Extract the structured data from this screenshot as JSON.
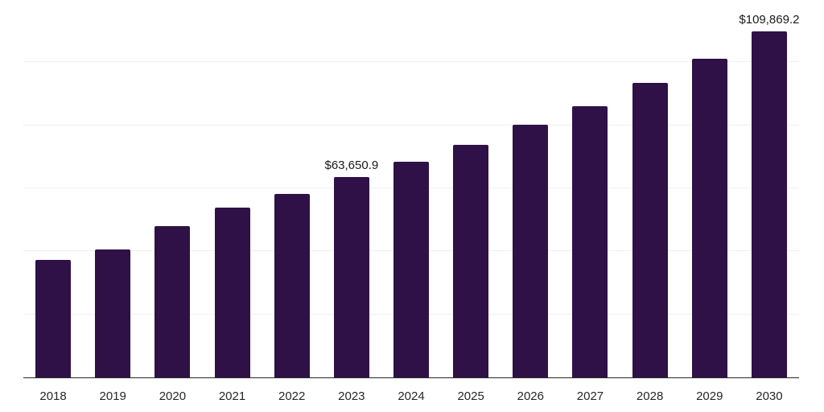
{
  "chart_data": {
    "type": "bar",
    "title": "",
    "xlabel": "",
    "ylabel": "",
    "categories": [
      "2018",
      "2019",
      "2020",
      "2021",
      "2022",
      "2023",
      "2024",
      "2025",
      "2026",
      "2027",
      "2028",
      "2029",
      "2030"
    ],
    "values": [
      37400,
      40700,
      48000,
      53900,
      58200,
      63650.9,
      68400,
      73700,
      80100,
      86100,
      93500,
      101200,
      109869.2
    ],
    "data_labels": [
      {
        "index": 5,
        "text": "$63,650.9"
      },
      {
        "index": 12,
        "text": "$109,869.2"
      }
    ],
    "ylim": [
      0,
      120000
    ],
    "gridline_step": 20000,
    "grid": "horizontal",
    "legend": "none",
    "colors": {
      "bar": "#2f1147",
      "axis_line": "#262626",
      "gridline": "#f0f0f0",
      "tick_label": "#262626",
      "data_label": "#1a1a1a",
      "background": "#ffffff"
    }
  }
}
